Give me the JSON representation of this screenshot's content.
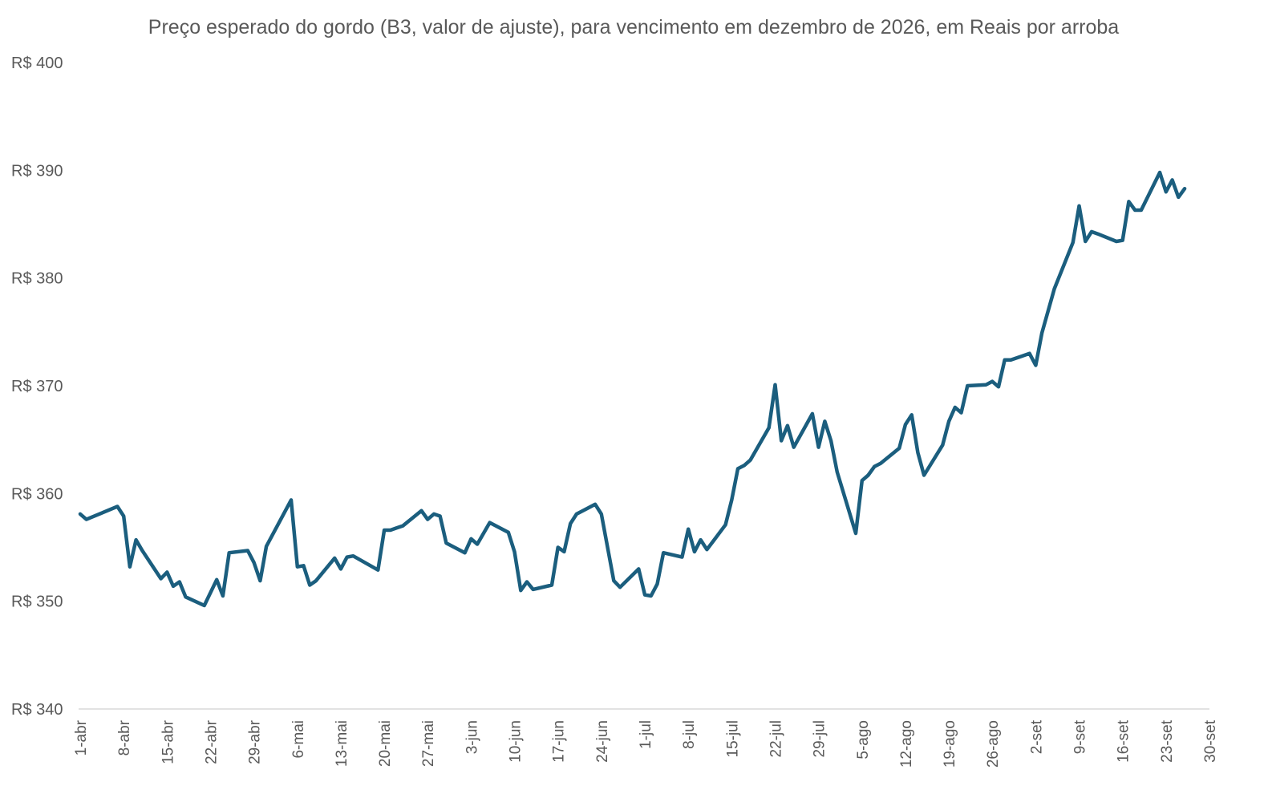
{
  "chart_data": {
    "type": "line",
    "title": "Preço esperado do gordo (B3, valor de ajuste), para vencimento em dezembro de 2026, em Reais por arroba",
    "xlabel": "",
    "ylabel": "",
    "x_range": [
      "2025-04-01",
      "2025-09-30"
    ],
    "ylim": [
      340,
      400
    ],
    "y_ticks": [
      340,
      350,
      360,
      370,
      380,
      390,
      400
    ],
    "y_tick_labels": [
      "R$ 340",
      "R$ 350",
      "R$ 360",
      "R$ 370",
      "R$ 380",
      "R$ 390",
      "R$ 400"
    ],
    "x_ticks": [
      "2025-04-01",
      "2025-04-08",
      "2025-04-15",
      "2025-04-22",
      "2025-04-29",
      "2025-05-06",
      "2025-05-13",
      "2025-05-20",
      "2025-05-27",
      "2025-06-03",
      "2025-06-10",
      "2025-06-17",
      "2025-06-24",
      "2025-07-01",
      "2025-07-08",
      "2025-07-15",
      "2025-07-22",
      "2025-07-29",
      "2025-08-05",
      "2025-08-12",
      "2025-08-19",
      "2025-08-26",
      "2025-09-02",
      "2025-09-09",
      "2025-09-16",
      "2025-09-23",
      "2025-09-30"
    ],
    "x_tick_labels": [
      "1-abr",
      "8-abr",
      "15-abr",
      "22-abr",
      "29-abr",
      "6-mai",
      "13-mai",
      "20-mai",
      "27-mai",
      "3-jun",
      "10-jun",
      "17-jun",
      "24-jun",
      "1-jul",
      "8-jul",
      "15-jul",
      "22-jul",
      "29-jul",
      "5-ago",
      "12-ago",
      "19-ago",
      "26-ago",
      "2-set",
      "9-set",
      "16-set",
      "23-set",
      "30-set"
    ],
    "grid": false,
    "legend": "none",
    "line_color": "#1b5e7e",
    "series": [
      {
        "points": [
          {
            "x": "2025-04-01",
            "y": 358.1
          },
          {
            "x": "2025-04-02",
            "y": 357.6
          },
          {
            "x": "2025-04-07",
            "y": 358.8
          },
          {
            "x": "2025-04-08",
            "y": 357.9
          },
          {
            "x": "2025-04-09",
            "y": 353.2
          },
          {
            "x": "2025-04-10",
            "y": 355.7
          },
          {
            "x": "2025-04-11",
            "y": 354.7
          },
          {
            "x": "2025-04-14",
            "y": 352.1
          },
          {
            "x": "2025-04-15",
            "y": 352.7
          },
          {
            "x": "2025-04-16",
            "y": 351.4
          },
          {
            "x": "2025-04-17",
            "y": 351.8
          },
          {
            "x": "2025-04-18",
            "y": 350.4
          },
          {
            "x": "2025-04-21",
            "y": 349.6
          },
          {
            "x": "2025-04-23",
            "y": 352.0
          },
          {
            "x": "2025-04-24",
            "y": 350.5
          },
          {
            "x": "2025-04-25",
            "y": 354.5
          },
          {
            "x": "2025-04-28",
            "y": 354.7
          },
          {
            "x": "2025-04-29",
            "y": 353.6
          },
          {
            "x": "2025-04-30",
            "y": 351.9
          },
          {
            "x": "2025-05-01",
            "y": 355.1
          },
          {
            "x": "2025-05-05",
            "y": 359.4
          },
          {
            "x": "2025-05-06",
            "y": 353.2
          },
          {
            "x": "2025-05-07",
            "y": 353.3
          },
          {
            "x": "2025-05-08",
            "y": 351.5
          },
          {
            "x": "2025-05-09",
            "y": 351.9
          },
          {
            "x": "2025-05-12",
            "y": 354.0
          },
          {
            "x": "2025-05-13",
            "y": 353.0
          },
          {
            "x": "2025-05-14",
            "y": 354.1
          },
          {
            "x": "2025-05-15",
            "y": 354.2
          },
          {
            "x": "2025-05-19",
            "y": 352.9
          },
          {
            "x": "2025-05-20",
            "y": 356.6
          },
          {
            "x": "2025-05-21",
            "y": 356.6
          },
          {
            "x": "2025-05-22",
            "y": 356.8
          },
          {
            "x": "2025-05-23",
            "y": 357.0
          },
          {
            "x": "2025-05-26",
            "y": 358.4
          },
          {
            "x": "2025-05-27",
            "y": 357.6
          },
          {
            "x": "2025-05-28",
            "y": 358.1
          },
          {
            "x": "2025-05-29",
            "y": 357.9
          },
          {
            "x": "2025-05-30",
            "y": 355.4
          },
          {
            "x": "2025-06-02",
            "y": 354.5
          },
          {
            "x": "2025-06-03",
            "y": 355.8
          },
          {
            "x": "2025-06-04",
            "y": 355.3
          },
          {
            "x": "2025-06-06",
            "y": 357.3
          },
          {
            "x": "2025-06-09",
            "y": 356.4
          },
          {
            "x": "2025-06-10",
            "y": 354.6
          },
          {
            "x": "2025-06-11",
            "y": 351.0
          },
          {
            "x": "2025-06-12",
            "y": 351.8
          },
          {
            "x": "2025-06-13",
            "y": 351.1
          },
          {
            "x": "2025-06-16",
            "y": 351.5
          },
          {
            "x": "2025-06-17",
            "y": 355.0
          },
          {
            "x": "2025-06-18",
            "y": 354.6
          },
          {
            "x": "2025-06-19",
            "y": 357.2
          },
          {
            "x": "2025-06-20",
            "y": 358.1
          },
          {
            "x": "2025-06-23",
            "y": 359.0
          },
          {
            "x": "2025-06-24",
            "y": 358.1
          },
          {
            "x": "2025-06-26",
            "y": 351.9
          },
          {
            "x": "2025-06-27",
            "y": 351.3
          },
          {
            "x": "2025-06-30",
            "y": 353.0
          },
          {
            "x": "2025-07-01",
            "y": 350.6
          },
          {
            "x": "2025-07-02",
            "y": 350.5
          },
          {
            "x": "2025-07-03",
            "y": 351.6
          },
          {
            "x": "2025-07-04",
            "y": 354.5
          },
          {
            "x": "2025-07-07",
            "y": 354.1
          },
          {
            "x": "2025-07-08",
            "y": 356.7
          },
          {
            "x": "2025-07-09",
            "y": 354.6
          },
          {
            "x": "2025-07-10",
            "y": 355.7
          },
          {
            "x": "2025-07-11",
            "y": 354.8
          },
          {
            "x": "2025-07-14",
            "y": 357.1
          },
          {
            "x": "2025-07-15",
            "y": 359.4
          },
          {
            "x": "2025-07-16",
            "y": 362.3
          },
          {
            "x": "2025-07-17",
            "y": 362.6
          },
          {
            "x": "2025-07-18",
            "y": 363.1
          },
          {
            "x": "2025-07-21",
            "y": 366.1
          },
          {
            "x": "2025-07-22",
            "y": 370.1
          },
          {
            "x": "2025-07-23",
            "y": 364.9
          },
          {
            "x": "2025-07-24",
            "y": 366.3
          },
          {
            "x": "2025-07-25",
            "y": 364.3
          },
          {
            "x": "2025-07-28",
            "y": 367.4
          },
          {
            "x": "2025-07-29",
            "y": 364.3
          },
          {
            "x": "2025-07-30",
            "y": 366.7
          },
          {
            "x": "2025-07-31",
            "y": 364.9
          },
          {
            "x": "2025-08-01",
            "y": 362.0
          },
          {
            "x": "2025-08-04",
            "y": 356.3
          },
          {
            "x": "2025-08-05",
            "y": 361.2
          },
          {
            "x": "2025-08-06",
            "y": 361.7
          },
          {
            "x": "2025-08-07",
            "y": 362.5
          },
          {
            "x": "2025-08-08",
            "y": 362.8
          },
          {
            "x": "2025-08-11",
            "y": 364.2
          },
          {
            "x": "2025-08-12",
            "y": 366.4
          },
          {
            "x": "2025-08-13",
            "y": 367.3
          },
          {
            "x": "2025-08-14",
            "y": 363.8
          },
          {
            "x": "2025-08-15",
            "y": 361.7
          },
          {
            "x": "2025-08-18",
            "y": 364.5
          },
          {
            "x": "2025-08-19",
            "y": 366.7
          },
          {
            "x": "2025-08-20",
            "y": 368.0
          },
          {
            "x": "2025-08-21",
            "y": 367.5
          },
          {
            "x": "2025-08-22",
            "y": 370.0
          },
          {
            "x": "2025-08-25",
            "y": 370.1
          },
          {
            "x": "2025-08-26",
            "y": 370.4
          },
          {
            "x": "2025-08-27",
            "y": 369.9
          },
          {
            "x": "2025-08-28",
            "y": 372.4
          },
          {
            "x": "2025-08-29",
            "y": 372.4
          },
          {
            "x": "2025-09-01",
            "y": 373.0
          },
          {
            "x": "2025-09-02",
            "y": 371.9
          },
          {
            "x": "2025-09-03",
            "y": 374.9
          },
          {
            "x": "2025-09-05",
            "y": 379.0
          },
          {
            "x": "2025-09-08",
            "y": 383.3
          },
          {
            "x": "2025-09-09",
            "y": 386.7
          },
          {
            "x": "2025-09-10",
            "y": 383.4
          },
          {
            "x": "2025-09-11",
            "y": 384.3
          },
          {
            "x": "2025-09-12",
            "y": 384.1
          },
          {
            "x": "2025-09-15",
            "y": 383.4
          },
          {
            "x": "2025-09-16",
            "y": 383.5
          },
          {
            "x": "2025-09-17",
            "y": 387.1
          },
          {
            "x": "2025-09-18",
            "y": 386.3
          },
          {
            "x": "2025-09-19",
            "y": 386.3
          },
          {
            "x": "2025-09-22",
            "y": 389.8
          },
          {
            "x": "2025-09-23",
            "y": 388.0
          },
          {
            "x": "2025-09-24",
            "y": 389.1
          },
          {
            "x": "2025-09-25",
            "y": 387.5
          },
          {
            "x": "2025-09-26",
            "y": 388.3
          }
        ]
      }
    ]
  }
}
